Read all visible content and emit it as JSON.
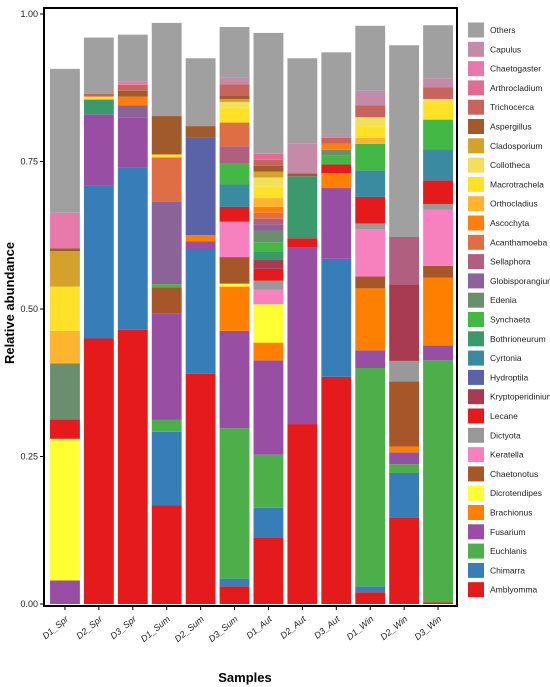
{
  "chart_data": {
    "type": "bar",
    "stacked": true,
    "xlabel": "Samples",
    "ylabel": "Relative abundance",
    "ylim": [
      0,
      1
    ],
    "yticks": [
      "0.00",
      "0.25",
      "0.50",
      "0.75",
      "1.00"
    ],
    "grid": false,
    "legend_position": "right",
    "categories": [
      "D1_Spr",
      "D2_Spr",
      "D3_Spr",
      "D1_Sum",
      "D2_Sum",
      "D3_Sum",
      "D1_Aut",
      "D2_Aut",
      "D3_Aut",
      "D1_Win",
      "D2_Win",
      "D3_Win"
    ],
    "series": [
      {
        "name": "Amblyomma",
        "color": "#e41a1c",
        "values": [
          0.0,
          0.45,
          0.465,
          0.167,
          0.39,
          0.03,
          0.113,
          0.305,
          0.385,
          0.02,
          0.147,
          0.003
        ]
      },
      {
        "name": "Chimarra",
        "color": "#377eb8",
        "values": [
          0.0,
          0.26,
          0.275,
          0.125,
          0.21,
          0.013,
          0.05,
          0.0,
          0.2,
          0.01,
          0.075,
          0.0
        ]
      },
      {
        "name": "Euchlanis",
        "color": "#4daf4a",
        "values": [
          0.0,
          0.0,
          0.0,
          0.02,
          0.0,
          0.255,
          0.09,
          0.0,
          0.0,
          0.37,
          0.015,
          0.41
        ]
      },
      {
        "name": "Fusarium",
        "color": "#984ea3",
        "values": [
          0.04,
          0.12,
          0.085,
          0.18,
          0.015,
          0.165,
          0.16,
          0.3,
          0.12,
          0.03,
          0.02,
          0.025
        ]
      },
      {
        "name": "Brachionus",
        "color": "#ff7f00",
        "values": [
          0.0,
          0.0,
          0.0,
          0.0,
          0.01,
          0.075,
          0.03,
          0.0,
          0.025,
          0.105,
          0.01,
          0.115
        ]
      },
      {
        "name": "Dicrotendipes",
        "color": "#ffff33",
        "values": [
          0.24,
          0.0,
          0.0,
          0.0,
          0.0,
          0.005,
          0.065,
          0.0,
          0.0,
          0.0,
          0.0,
          0.0
        ]
      },
      {
        "name": "Chaetonotus",
        "color": "#a65628",
        "values": [
          0.0,
          0.0,
          0.0,
          0.045,
          0.0,
          0.045,
          0.0,
          0.0,
          0.0,
          0.02,
          0.11,
          0.02
        ]
      },
      {
        "name": "Keratella",
        "color": "#f781bf",
        "values": [
          0.0,
          0.0,
          0.0,
          0.0,
          0.0,
          0.06,
          0.025,
          0.0,
          0.0,
          0.08,
          0.0,
          0.095
        ]
      },
      {
        "name": "Dictyota",
        "color": "#999999",
        "values": [
          0.0,
          0.0,
          0.0,
          0.0,
          0.0,
          0.0,
          0.015,
          0.0,
          0.0,
          0.01,
          0.035,
          0.01
        ]
      },
      {
        "name": "Lecane",
        "color": "#e41a1c",
        "values": [
          0.033,
          0.0,
          0.0,
          0.0,
          0.0,
          0.025,
          0.02,
          0.015,
          0.015,
          0.045,
          0.0,
          0.04
        ]
      },
      {
        "name": "Kryptoperidinium",
        "color": "#a83b52",
        "values": [
          0.0,
          0.0,
          0.0,
          0.0,
          0.0,
          0.0,
          0.015,
          0.0,
          0.0,
          0.0,
          0.13,
          0.0
        ]
      },
      {
        "name": "Hydroptila",
        "color": "#5a62a8",
        "values": [
          0.0,
          0.0,
          0.0,
          0.0,
          0.165,
          0.0,
          0.0,
          0.0,
          0.0,
          0.0,
          0.0,
          0.0
        ]
      },
      {
        "name": "Cyrtonia",
        "color": "#3a8ba0",
        "values": [
          0.0,
          0.0,
          0.0,
          0.0,
          0.0,
          0.038,
          0.0,
          0.0,
          0.0,
          0.045,
          0.0,
          0.053
        ]
      },
      {
        "name": "Bothrioneurum",
        "color": "#3a9a6e",
        "values": [
          0.0,
          0.025,
          0.0,
          0.0,
          0.0,
          0.0,
          0.015,
          0.105,
          0.0,
          0.0,
          0.0,
          0.0
        ]
      },
      {
        "name": "Synchaeta",
        "color": "#44b844",
        "values": [
          0.0,
          0.0,
          0.0,
          0.005,
          0.0,
          0.035,
          0.015,
          0.0,
          0.015,
          0.045,
          0.0,
          0.05
        ]
      },
      {
        "name": "Edenia",
        "color": "#6b8f6e",
        "values": [
          0.095,
          0.0,
          0.0,
          0.0,
          0.0,
          0.0,
          0.02,
          0.0,
          0.01,
          0.0,
          0.0,
          0.0
        ]
      },
      {
        "name": "Globisporangium",
        "color": "#8c6399",
        "values": [
          0.0,
          0.0,
          0.02,
          0.14,
          0.0,
          0.0,
          0.01,
          0.0,
          0.0,
          0.0,
          0.0,
          0.0
        ]
      },
      {
        "name": "Sellaphora",
        "color": "#b05f7f",
        "values": [
          0.0,
          0.0,
          0.0,
          0.0,
          0.0,
          0.03,
          0.01,
          0.0,
          0.0,
          0.0,
          0.08,
          0.0
        ]
      },
      {
        "name": "Acanthamoeba",
        "color": "#e06e45",
        "values": [
          0.0,
          0.0,
          0.0,
          0.075,
          0.0,
          0.04,
          0.01,
          0.0,
          0.0,
          0.0,
          0.0,
          0.0
        ]
      },
      {
        "name": "Ascochyta",
        "color": "#ff7f0e",
        "values": [
          0.0,
          0.0,
          0.015,
          0.0,
          0.0,
          0.0,
          0.01,
          0.0,
          0.01,
          0.0,
          0.0,
          0.0
        ]
      },
      {
        "name": "Orthocladius",
        "color": "#fdb42f",
        "values": [
          0.055,
          0.0,
          0.0,
          0.0,
          0.0,
          0.0,
          0.015,
          0.0,
          0.0,
          0.01,
          0.0,
          0.0
        ]
      },
      {
        "name": "Macrotrachela",
        "color": "#ffe227",
        "values": [
          0.075,
          0.005,
          0.0,
          0.005,
          0.0,
          0.025,
          0.02,
          0.0,
          0.0,
          0.02,
          0.0,
          0.03
        ]
      },
      {
        "name": "Collotheca",
        "color": "#f0e05c",
        "values": [
          0.0,
          0.0,
          0.0,
          0.0,
          0.0,
          0.01,
          0.015,
          0.0,
          0.0,
          0.015,
          0.0,
          0.005
        ]
      },
      {
        "name": "Cladosporium",
        "color": "#d4a22a",
        "values": [
          0.06,
          0.0,
          0.0,
          0.0,
          0.0,
          0.005,
          0.01,
          0.0,
          0.0,
          0.0,
          0.0,
          0.0
        ]
      },
      {
        "name": "Aspergillus",
        "color": "#a05a2c",
        "values": [
          0.005,
          0.0,
          0.01,
          0.065,
          0.02,
          0.005,
          0.01,
          0.005,
          0.0,
          0.0,
          0.0,
          0.0
        ]
      },
      {
        "name": "Trichocerca",
        "color": "#c8645e",
        "values": [
          0.0,
          0.005,
          0.01,
          0.0,
          0.0,
          0.02,
          0.01,
          0.0,
          0.01,
          0.02,
          0.0,
          0.02
        ]
      },
      {
        "name": "Arthrocladium",
        "color": "#e06b94",
        "values": [
          0.0,
          0.0,
          0.0,
          0.0,
          0.0,
          0.0,
          0.01,
          0.0,
          0.0,
          0.0,
          0.0,
          0.0
        ]
      },
      {
        "name": "Chaetogaster",
        "color": "#e87aab",
        "values": [
          0.06,
          0.0,
          0.005,
          0.0,
          0.0,
          0.0,
          0.0,
          0.0,
          0.0,
          0.0,
          0.0,
          0.0
        ]
      },
      {
        "name": "Capulus",
        "color": "#c48aa8",
        "values": [
          0.0,
          0.0,
          0.0,
          0.0,
          0.0,
          0.012,
          0.0,
          0.05,
          0.005,
          0.025,
          0.0,
          0.015
        ]
      },
      {
        "name": "Others",
        "color": "#a0a0a0",
        "values": [
          0.244,
          0.095,
          0.08,
          0.158,
          0.115,
          0.085,
          0.205,
          0.145,
          0.14,
          0.11,
          0.325,
          0.09
        ]
      }
    ]
  }
}
